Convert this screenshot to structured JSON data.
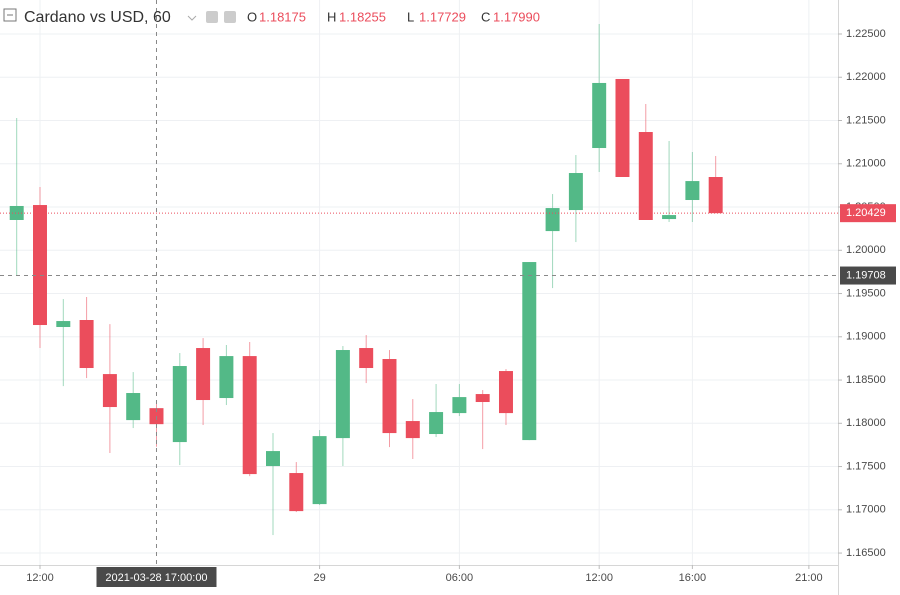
{
  "chart_data": {
    "type": "candlestick",
    "title": "Cardano vs USD, 60",
    "status_line": [
      {
        "key": "O",
        "text": "1.18175"
      },
      {
        "key": "H",
        "text": "1.18255"
      },
      {
        "key": "L",
        "text": "1.17729"
      },
      {
        "key": "C",
        "text": "1.17990"
      }
    ],
    "x": [
      "2021-03-28T11:00",
      "2021-03-28T12:00",
      "2021-03-28T13:00",
      "2021-03-28T14:00",
      "2021-03-28T15:00",
      "2021-03-28T16:00",
      "2021-03-28T17:00",
      "2021-03-28T18:00",
      "2021-03-28T19:00",
      "2021-03-28T20:00",
      "2021-03-28T21:00",
      "2021-03-28T22:00",
      "2021-03-28T23:00",
      "2021-03-29T00:00",
      "2021-03-29T01:00",
      "2021-03-29T02:00",
      "2021-03-29T03:00",
      "2021-03-29T04:00",
      "2021-03-29T05:00",
      "2021-03-29T06:00",
      "2021-03-29T07:00",
      "2021-03-29T08:00",
      "2021-03-29T09:00",
      "2021-03-29T10:00",
      "2021-03-29T11:00",
      "2021-03-29T12:00",
      "2021-03-29T13:00",
      "2021-03-29T14:00",
      "2021-03-29T15:00",
      "2021-03-29T16:00",
      "2021-03-29T17:00"
    ],
    "open": [
      1.2035,
      1.20523,
      1.19113,
      1.19194,
      1.18569,
      1.18037,
      1.18175,
      1.17783,
      1.1887,
      1.18292,
      1.18777,
      1.17506,
      1.17425,
      1.17066,
      1.17829,
      1.1887,
      1.18743,
      1.18026,
      1.17876,
      1.18118,
      1.18338,
      1.18604,
      1.17806,
      1.20222,
      1.20465,
      1.21182,
      1.2198,
      1.21367,
      1.20361,
      1.20581,
      1.20847
    ],
    "high": [
      1.21529,
      1.20731,
      1.19436,
      1.1946,
      1.19147,
      1.18592,
      1.18255,
      1.18812,
      1.18985,
      1.18905,
      1.18939,
      1.17887,
      1.17552,
      1.17922,
      1.18893,
      1.1902,
      1.18847,
      1.1828,
      1.18454,
      1.18454,
      1.18384,
      1.18627,
      1.19864,
      1.2065,
      1.21101,
      1.22616,
      1.2198,
      1.21691,
      1.21263,
      1.21136,
      1.2109
    ],
    "low": [
      1.19714,
      1.1887,
      1.1843,
      1.18523,
      1.17656,
      1.17945,
      1.17729,
      1.17517,
      1.1798,
      1.18211,
      1.1739,
      1.16708,
      1.16974,
      1.17055,
      1.17506,
      1.18465,
      1.17725,
      1.17587,
      1.17841,
      1.18084,
      1.17702,
      1.1798,
      1.17806,
      1.19563,
      1.20095,
      1.20905,
      1.20847,
      1.2035,
      1.20327,
      1.20327,
      1.20429
    ],
    "close": [
      1.20512,
      1.19136,
      1.19182,
      1.18639,
      1.18188,
      1.1835,
      1.1799,
      1.18662,
      1.18269,
      1.18777,
      1.17413,
      1.17679,
      1.16985,
      1.17852,
      1.18847,
      1.18639,
      1.17887,
      1.17829,
      1.1813,
      1.18303,
      1.18246,
      1.18118,
      1.19864,
      1.20488,
      1.20893,
      1.21934,
      1.20847,
      1.2035,
      1.20407,
      1.208,
      1.20429
    ],
    "up_color": "#53b987",
    "down_color": "#eb4d5c",
    "xlim": [
      "2021-03-28T10:17",
      "2021-03-29T22:15"
    ],
    "xticks": [
      {
        "value": "2021-03-28T12:00",
        "label": "12:00"
      },
      {
        "value": "2021-03-29T00:00",
        "label": "29"
      },
      {
        "value": "2021-03-29T06:00",
        "label": "06:00"
      },
      {
        "value": "2021-03-29T12:00",
        "label": "12:00"
      },
      {
        "value": "2021-03-29T16:00",
        "label": "16:00"
      },
      {
        "value": "2021-03-29T21:00",
        "label": "21:00"
      }
    ],
    "ylim": [
      1.16362,
      1.22893
    ],
    "yticks": [
      {
        "value": 1.165,
        "label": "1.16500"
      },
      {
        "value": 1.17,
        "label": "1.17000"
      },
      {
        "value": 1.175,
        "label": "1.17500"
      },
      {
        "value": 1.18,
        "label": "1.18000"
      },
      {
        "value": 1.185,
        "label": "1.18500"
      },
      {
        "value": 1.19,
        "label": "1.19000"
      },
      {
        "value": 1.195,
        "label": "1.19500"
      },
      {
        "value": 1.2,
        "label": "1.20000"
      },
      {
        "value": 1.205,
        "label": "1.20500"
      },
      {
        "value": 1.21,
        "label": "1.21000"
      },
      {
        "value": 1.215,
        "label": "1.21500"
      },
      {
        "value": 1.22,
        "label": "1.22000"
      },
      {
        "value": 1.225,
        "label": "1.22500"
      }
    ],
    "grid": true,
    "last_price": 1.20429,
    "crosshair": {
      "x": {
        "value": "2021-03-28T17:00",
        "label": "2021-03-28 17:00:00"
      },
      "y": 1.19708
    }
  }
}
